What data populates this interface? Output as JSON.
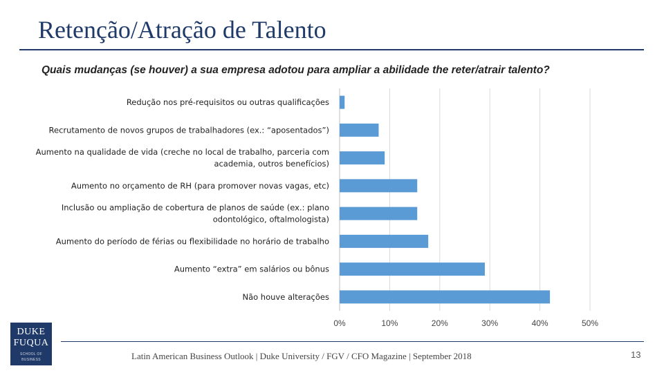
{
  "slide": {
    "title": "Retenção/Atração de Talento",
    "question": "Quais mudanças (se houver) a sua empresa adotou para ampliar a abilidade the reter/atrair talento?",
    "footer": "Latin American Business Outlook | Duke University / FGV / CFO Magazine | September 2018",
    "page_number": "13",
    "logo": {
      "line1": "DUKE",
      "line2": "FUQUA",
      "line3": "SCHOOL OF BUSINESS"
    }
  },
  "colors": {
    "bar": "#5b9bd5",
    "title": "#1f3a68",
    "gridline": "#d9d9d9"
  },
  "chart_data": {
    "type": "bar",
    "orientation": "horizontal",
    "categories": [
      [
        "Redução nos pré-requisitos ou outras qualificações"
      ],
      [
        "Recrutamento de novos grupos de trabalhadores (ex.: “aposentados”)"
      ],
      [
        "Aumento na qualidade de vida (creche no local de trabalho, parceria com",
        "academia, outros benefícios)"
      ],
      [
        "Aumento no orçamento de RH (para promover novas vagas, etc)"
      ],
      [
        "Inclusão ou ampliação de cobertura de planos de saúde (ex.: plano",
        "odontológico, oftalmologista)"
      ],
      [
        "Aumento do período de férias ou flexibilidade no horário de trabalho"
      ],
      [
        "Aumento “extra” em salários ou bônus"
      ],
      [
        "Não houve alterações"
      ]
    ],
    "values": [
      1,
      7.8,
      9,
      15.5,
      15.5,
      17.7,
      29,
      42
    ],
    "xlim": [
      0,
      50
    ],
    "xticks": [
      "0%",
      "10%",
      "20%",
      "30%",
      "40%",
      "50%"
    ],
    "grid": true,
    "legend": "none"
  }
}
